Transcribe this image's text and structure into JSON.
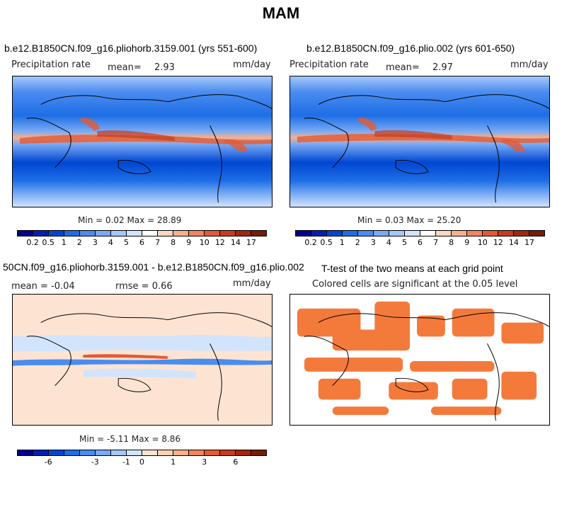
{
  "title": "MAM",
  "panels": [
    {
      "title": "b.e12.B1850CN.f09_g16.pliohorb.3159.001 (yrs 551-600)",
      "field_label": "Precipitation rate",
      "mean_label": "mean=",
      "mean_value": "2.93",
      "units": "mm/day",
      "minmax": "Min =   0.02  Max =   28.89"
    },
    {
      "title": "b.e12.B1850CN.f09_g16.plio.002 (yrs 601-650)",
      "field_label": "Precipitation rate",
      "mean_label": "mean=",
      "mean_value": "2.97",
      "units": "mm/day",
      "minmax": "Min =   0.03  Max =   25.20"
    },
    {
      "title": "50CN.f09_g16.pliohorb.3159.001 - b.e12.B1850CN.f09_g16.plio.002",
      "mean_text": "mean =   -0.04",
      "rmse_text": "rmse =    0.66",
      "units": "mm/day",
      "minmax": "Min =  -5.11  Max =    8.86"
    },
    {
      "title": "T-test of the two means at each grid point",
      "subtitle": "Colored cells are significant at the 0.05 level"
    }
  ],
  "colorbar_precip": {
    "labels": [
      "0.2",
      "0.5",
      "1",
      "2",
      "3",
      "4",
      "5",
      "6",
      "7",
      "8",
      "9",
      "10",
      "12",
      "14",
      "17"
    ],
    "colors": [
      "#00008c",
      "#0020b4",
      "#0046d2",
      "#1e6ee6",
      "#4a8cf0",
      "#78aaf5",
      "#a5c8fa",
      "#d2e4fc",
      "#ffffff",
      "#fcd8c2",
      "#f8b08c",
      "#f2855f",
      "#e45a35",
      "#c83c1e",
      "#a02812",
      "#781c0a"
    ]
  },
  "colorbar_diff": {
    "labels": [
      "-6",
      "-3",
      "-1",
      "0",
      "1",
      "3",
      "6"
    ],
    "colors": [
      "#00008c",
      "#0020b4",
      "#0046d2",
      "#1e6ee6",
      "#4a8cf0",
      "#78aaf5",
      "#a5c8fa",
      "#d2e4fc",
      "#fde4d2",
      "#fcd0b4",
      "#f8b08c",
      "#f2855f",
      "#e45a35",
      "#c83c1e",
      "#a02812",
      "#781c0a"
    ]
  },
  "significance_color": "#f47a3c"
}
